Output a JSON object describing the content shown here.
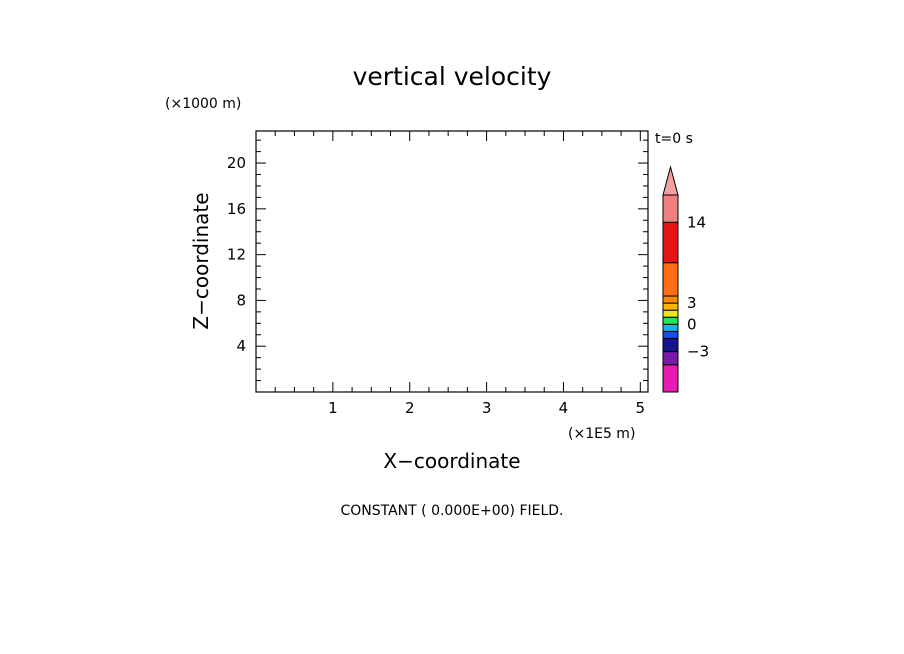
{
  "chart_data": {
    "type": "heatmap",
    "title": "vertical velocity",
    "xlabel": "X−coordinate",
    "ylabel": "Z−coordinate",
    "x_unit": "(×1E5 m)",
    "y_unit": "(×1000 m)",
    "time_label": "t=0 s",
    "xlim": [
      0,
      5.1
    ],
    "ylim": [
      0,
      22.8
    ],
    "x_ticks": [
      1,
      2,
      3,
      4,
      5
    ],
    "y_ticks": [
      4,
      8,
      12,
      16,
      20
    ],
    "field_message": "CONSTANT ( 0.000E+00) FIELD.",
    "colorbar": {
      "levels": [
        -12,
        -6,
        -3,
        -2,
        -1,
        0,
        1,
        2,
        3,
        4,
        8,
        14,
        20
      ],
      "tick_labels": [
        {
          "value": 14,
          "label": "14"
        },
        {
          "value": 3,
          "label": "3"
        },
        {
          "value": 0,
          "label": "0"
        },
        {
          "value": -3,
          "label": "−3"
        }
      ],
      "colors": [
        "#e81ab4",
        "#7a1aa8",
        "#14148c",
        "#1450e6",
        "#1ab4e6",
        "#1ee65a",
        "#e6e61a",
        "#ffb400",
        "#ff8c00",
        "#ff6e14",
        "#e61414",
        "#f08080"
      ],
      "extend_color": "#f0a0a0"
    }
  }
}
